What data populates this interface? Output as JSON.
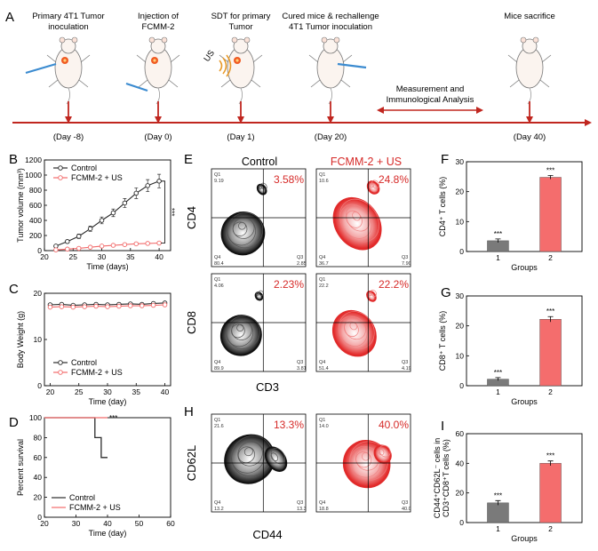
{
  "colors": {
    "arrow": "#c0261f",
    "control": "#2b2b2b",
    "treat": "#f26b6b",
    "bar_control": "#7a7a7a",
    "bar_treat": "#f46d6d"
  },
  "timeline": {
    "panel_label": "A",
    "steps": [
      {
        "title_lines": [
          "Primary 4T1 Tumor",
          "inoculation"
        ],
        "day": "(Day -8)"
      },
      {
        "title_lines": [
          "Injection of",
          "FCMM-2"
        ],
        "day": "(Day 0)"
      },
      {
        "title_lines": [
          "SDT for primary",
          "Tumor"
        ],
        "day": "(Day 1)"
      },
      {
        "title_lines": [
          "Cured mice & rechallenge",
          "4T1 Tumor inoculation"
        ],
        "day": "(Day 20)"
      },
      {
        "title_lines": [
          "Mice sacrifice"
        ],
        "day": "(Day 40)"
      }
    ],
    "us_label": "US",
    "analysis_lines": [
      "Measurement and",
      "Immunological Analysis"
    ]
  },
  "chart_data": [
    {
      "panel": "B",
      "type": "line",
      "xlabel": "Time (days)",
      "ylabel": "Tumor volume (mm³)",
      "xlim": [
        20,
        42
      ],
      "xticks": [
        20,
        25,
        30,
        35,
        40
      ],
      "ylim": [
        0,
        1200
      ],
      "yticks": [
        0,
        200,
        400,
        600,
        800,
        1000,
        1200
      ],
      "x": [
        22,
        24,
        26,
        28,
        30,
        32,
        34,
        36,
        38,
        40
      ],
      "series": [
        {
          "name": "Control",
          "values": [
            60,
            120,
            190,
            290,
            400,
            500,
            630,
            760,
            860,
            920
          ],
          "errors": [
            15,
            20,
            30,
            35,
            45,
            50,
            60,
            70,
            80,
            90
          ]
        },
        {
          "name": "FCMM-2 + US",
          "values": [
            10,
            20,
            30,
            45,
            60,
            70,
            80,
            90,
            95,
            100
          ],
          "errors": [
            5,
            5,
            8,
            8,
            10,
            10,
            10,
            12,
            12,
            15
          ]
        }
      ],
      "significance": "***"
    },
    {
      "panel": "C",
      "type": "line",
      "xlabel": "Time (day)",
      "ylabel": "Body Weight (g)",
      "xlim": [
        19,
        41
      ],
      "xticks": [
        20,
        25,
        30,
        35,
        40
      ],
      "ylim": [
        0,
        20
      ],
      "yticks": [
        0,
        10,
        20
      ],
      "x": [
        20,
        22,
        24,
        26,
        28,
        30,
        32,
        34,
        36,
        38,
        40
      ],
      "series": [
        {
          "name": "Control",
          "values": [
            17.5,
            17.6,
            17.4,
            17.5,
            17.6,
            17.5,
            17.6,
            17.7,
            17.6,
            17.8,
            17.9
          ]
        },
        {
          "name": "FCMM-2 + US",
          "values": [
            17.0,
            17.1,
            17.0,
            17.1,
            17.2,
            17.1,
            17.2,
            17.3,
            17.3,
            17.4,
            17.5
          ]
        }
      ]
    },
    {
      "panel": "D",
      "type": "line",
      "xlabel": "Time (day)",
      "ylabel": "Percent survival",
      "xlim": [
        20,
        60
      ],
      "xticks": [
        20,
        30,
        40,
        50,
        60
      ],
      "ylim": [
        0,
        100
      ],
      "yticks": [
        0,
        20,
        40,
        60,
        80,
        100
      ],
      "series": [
        {
          "name": "Control",
          "steps": [
            [
              20,
              100
            ],
            [
              36,
              100
            ],
            [
              36,
              80
            ],
            [
              38,
              80
            ],
            [
              38,
              60
            ],
            [
              40,
              60
            ]
          ]
        },
        {
          "name": "FCMM-2 + US",
          "steps": [
            [
              20,
              100
            ],
            [
              40,
              100
            ]
          ]
        }
      ],
      "significance": "***"
    },
    {
      "panel": "F",
      "type": "bar",
      "xlabel": "Groups",
      "ylabel": "CD4⁺ T cells (%)",
      "categories": [
        "1",
        "2"
      ],
      "values": [
        3.6,
        24.8
      ],
      "errors": [
        0.6,
        0.6
      ],
      "ylim": [
        0,
        30
      ],
      "yticks": [
        0,
        10,
        20,
        30
      ],
      "significance": [
        "***",
        "***"
      ]
    },
    {
      "panel": "G",
      "type": "bar",
      "xlabel": "Groups",
      "ylabel": "CD8⁺ T cells (%)",
      "categories": [
        "1",
        "2"
      ],
      "values": [
        2.2,
        22.2
      ],
      "errors": [
        0.5,
        0.9
      ],
      "ylim": [
        0,
        30
      ],
      "yticks": [
        0,
        10,
        20,
        30
      ],
      "significance": [
        "***",
        "***"
      ]
    },
    {
      "panel": "I",
      "type": "bar",
      "xlabel": "Groups",
      "ylabel_lines": [
        "CD44⁺CD62L⁻ cells in",
        "CD3⁺CD8⁺T cells (%)"
      ],
      "categories": [
        "1",
        "2"
      ],
      "values": [
        13.3,
        40.0
      ],
      "errors": [
        1.5,
        1.6
      ],
      "ylim": [
        0,
        60
      ],
      "yticks": [
        0,
        20,
        40,
        60
      ],
      "significance": [
        "***",
        "***"
      ]
    }
  ],
  "flow": {
    "panel_E": "E",
    "panel_H": "H",
    "col_titles": [
      "Control",
      "FCMM-2 + US"
    ],
    "rows": [
      {
        "axis": "CD4",
        "cells": [
          {
            "pct": "3.58%",
            "q": [
              "Q1",
              "Q2",
              "Q4",
              "Q3"
            ],
            "v": [
              "9.19",
              "",
              "80.4",
              "2.85"
            ]
          },
          {
            "pct": "24.8%",
            "q": [
              "Q1",
              "Q2",
              "Q4",
              "Q3"
            ],
            "v": [
              "10.6",
              "",
              "36.7",
              "7.90"
            ]
          }
        ]
      },
      {
        "axis": "CD8",
        "cells": [
          {
            "pct": "2.23%",
            "q": [
              "Q1",
              "Q2",
              "Q4",
              "Q3"
            ],
            "v": [
              "4.06",
              "",
              "89.9",
              "3.81"
            ]
          },
          {
            "pct": "22.2%",
            "q": [
              "Q1",
              "Q2",
              "Q4",
              "Q3"
            ],
            "v": [
              "22.2",
              "",
              "51.4",
              "4.19"
            ]
          }
        ]
      },
      {
        "axis": "CD62L",
        "cells": [
          {
            "pct": "13.3%",
            "q": [
              "Q1",
              "Q2",
              "Q4",
              "Q3"
            ],
            "v": [
              "21.6",
              "",
              "13.2",
              "13.3"
            ]
          },
          {
            "pct": "40.0%",
            "q": [
              "Q1",
              "Q2",
              "Q4",
              "Q3"
            ],
            "v": [
              "14.0",
              "",
              "18.8",
              "40.0"
            ]
          }
        ]
      }
    ],
    "x_axis_top": "CD3",
    "x_axis_bottom": "CD44"
  }
}
